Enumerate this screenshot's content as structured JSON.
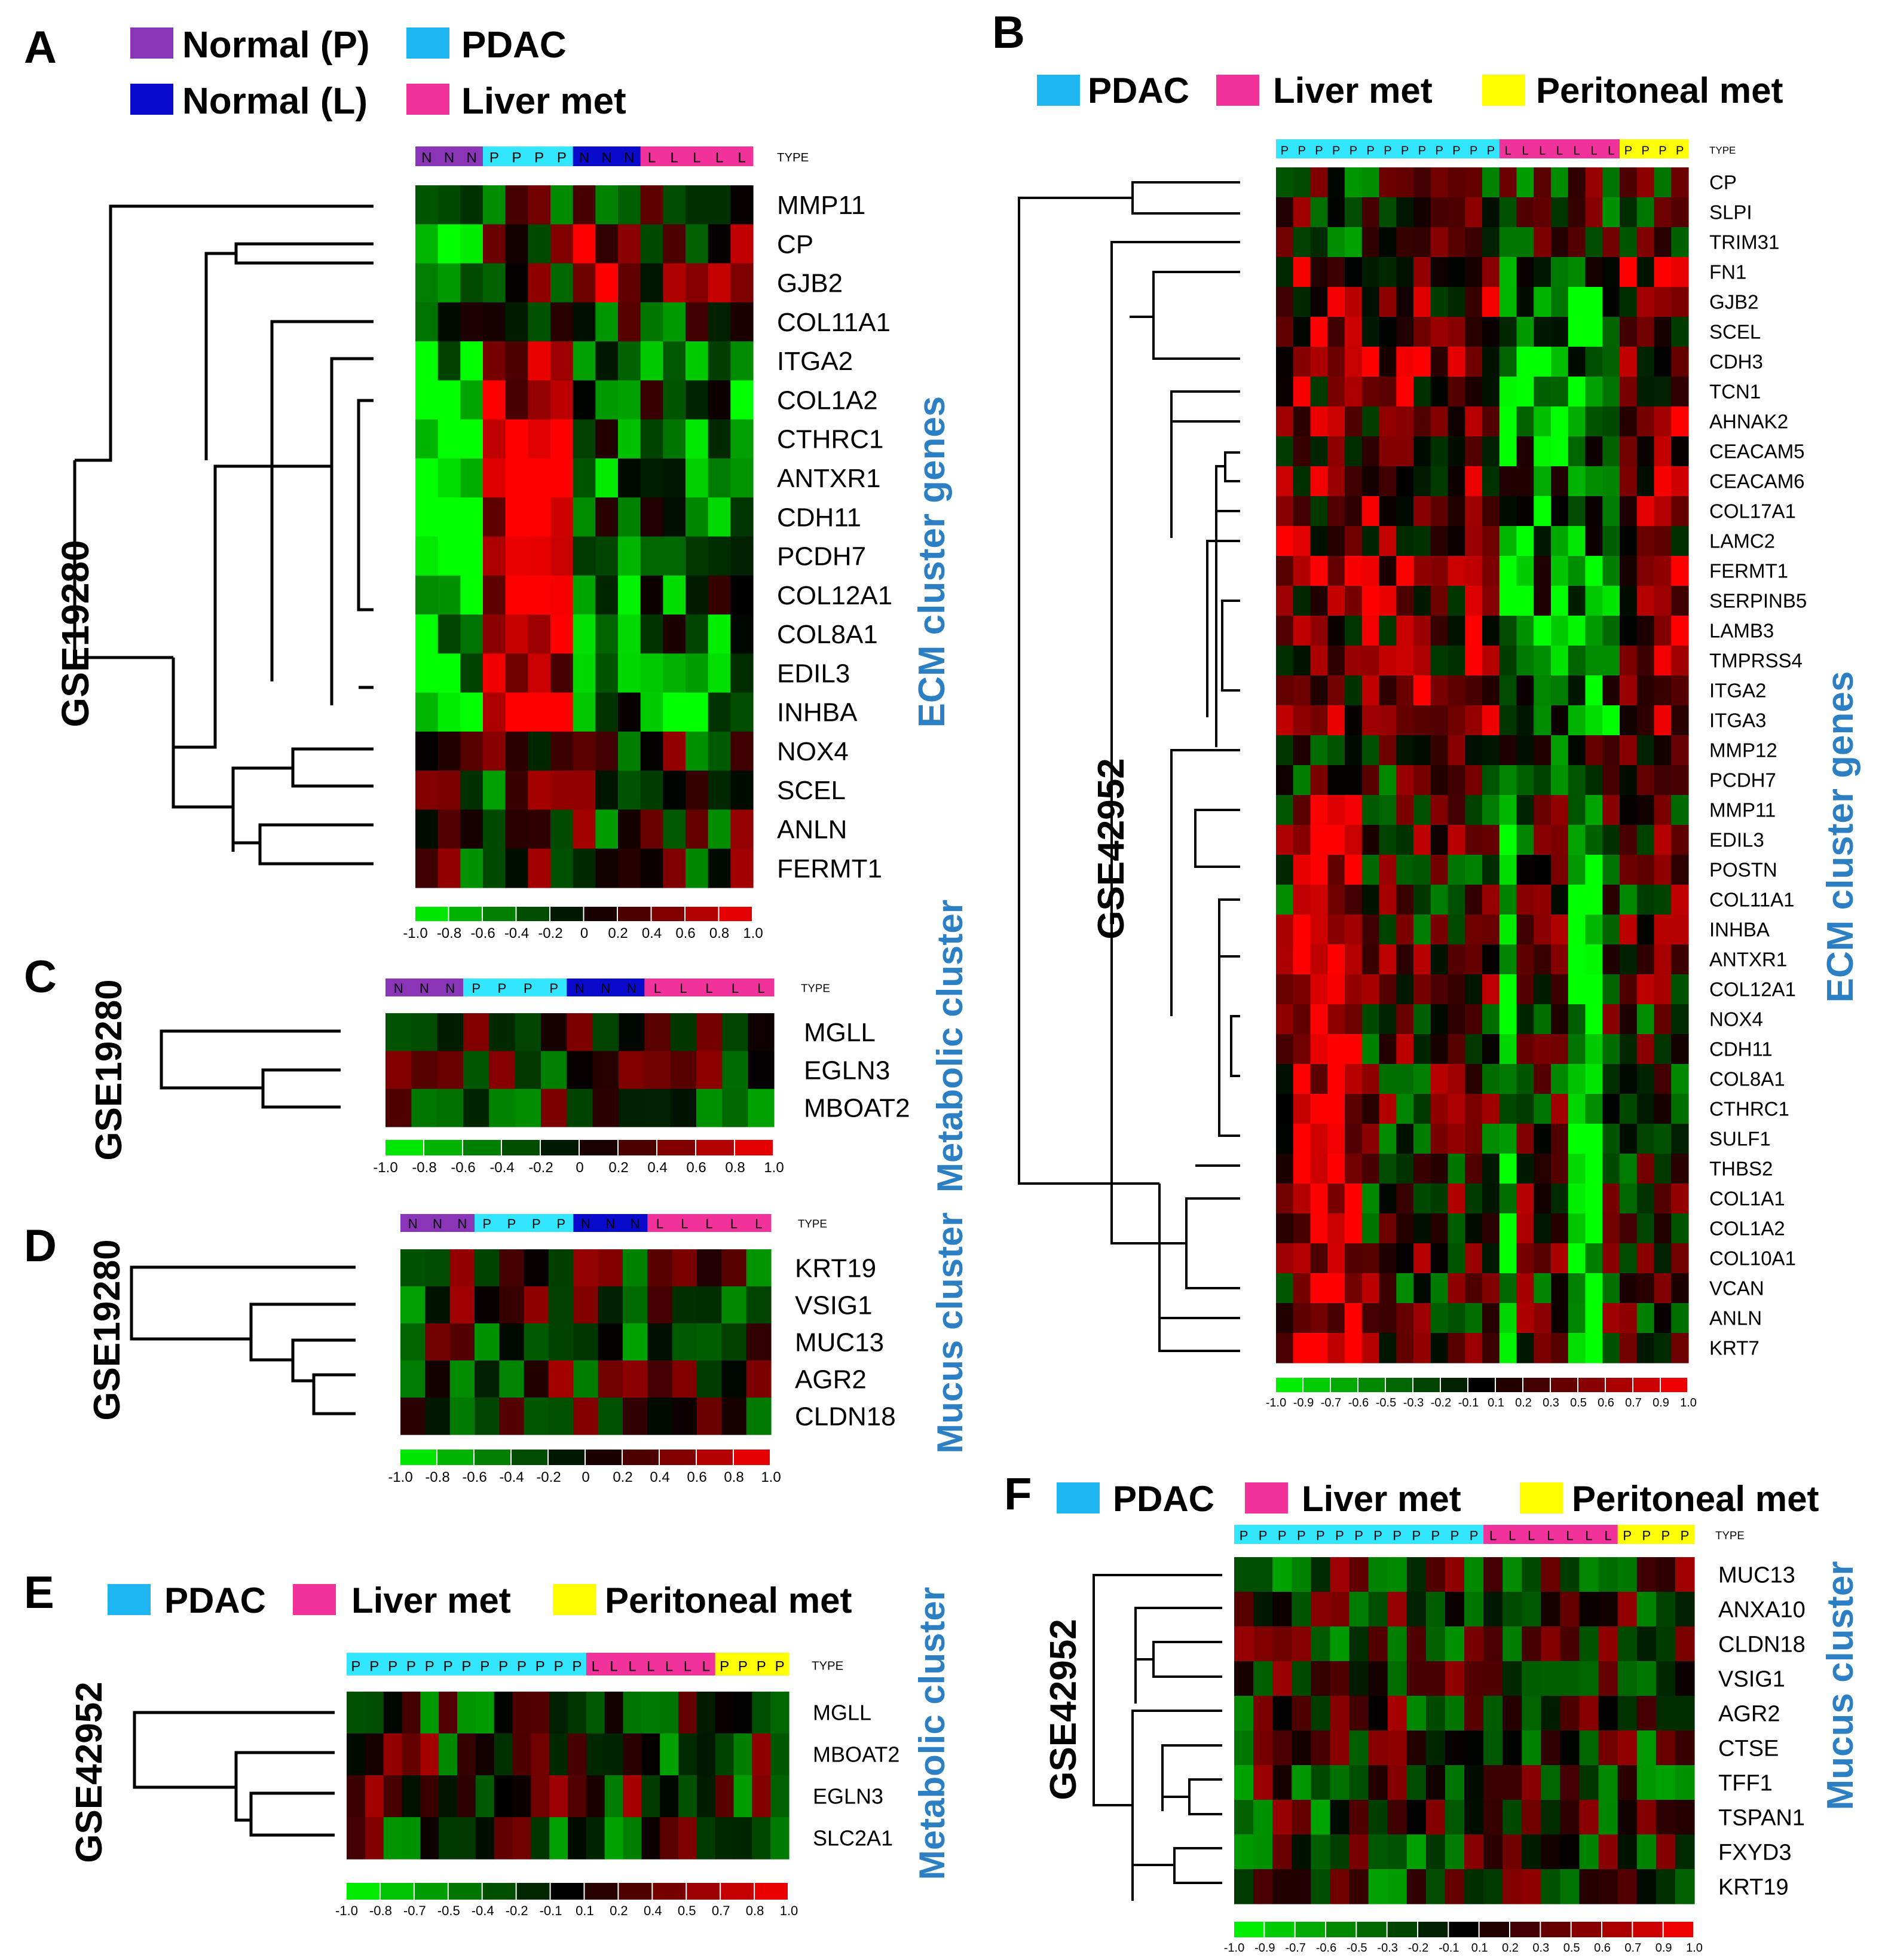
{
  "colors": {
    "normal_p": "#8a35b8",
    "normal_l": "#0a0acd",
    "pdac": "#1eb6f0",
    "liver": "#f0329a",
    "peritoneal": "#ffff00",
    "type_pdac_strip": "#33e6ff",
    "heat_green": "#00ff00",
    "heat_red": "#ff0000",
    "text_blue": "#2d7fc4"
  },
  "legends": {
    "normal_p": "Normal (P)",
    "normal_l": "Normal (L)",
    "pdac": "PDAC",
    "liver": "Liver met",
    "peritoneal": "Peritoneal met"
  },
  "type_label": "TYPE",
  "colorbar": {
    "ticks_a": [
      "-1.0",
      "-0.8",
      "-0.6",
      "-0.4",
      "-0.2",
      "0",
      "0.2",
      "0.4",
      "0.6",
      "0.8",
      "1.0"
    ],
    "ticks_b": [
      "-1.0",
      "-0.9",
      "-0.7",
      "-0.6",
      "-0.5",
      "-0.3",
      "-0.2",
      "-0.1",
      "0.1",
      "0.2",
      "0.3",
      "0.5",
      "0.6",
      "0.7",
      "0.9",
      "1.0"
    ],
    "ticks_e": [
      "-1.0",
      "-0.8",
      "-0.7",
      "-0.5",
      "-0.4",
      "-0.2",
      "-0.1",
      "0.1",
      "0.2",
      "0.4",
      "0.5",
      "0.7",
      "0.8",
      "1.0"
    ]
  },
  "chart_data": [
    {
      "type": "heatmap",
      "panel": "A",
      "dataset": "GSE19280",
      "cluster": "ECM cluster genes",
      "sample_types": [
        "N",
        "N",
        "N",
        "P",
        "P",
        "P",
        "P",
        "N",
        "N",
        "N",
        "L",
        "L",
        "L",
        "L",
        "L"
      ],
      "genes": [
        "MMP11",
        "CP",
        "GJB2",
        "COL11A1",
        "ITGA2",
        "COL1A2",
        "CTHRC1",
        "ANTXR1",
        "CDH11",
        "PCDH7",
        "COL12A1",
        "COL8A1",
        "EDIL3",
        "INHBA",
        "NOX4",
        "SCEL",
        "ANLN",
        "FERMT1"
      ],
      "color_range": [
        -1.0,
        1.0
      ]
    },
    {
      "type": "heatmap",
      "panel": "B",
      "dataset": "GSE42952",
      "cluster": "ECM cluster genes",
      "sample_types": [
        "P",
        "P",
        "P",
        "P",
        "P",
        "P",
        "P",
        "P",
        "P",
        "P",
        "P",
        "P",
        "P",
        "L",
        "L",
        "L",
        "L",
        "L",
        "L",
        "L",
        "P",
        "P",
        "P",
        "P"
      ],
      "genes": [
        "CP",
        "SLPI",
        "TRIM31",
        "FN1",
        "GJB2",
        "SCEL",
        "CDH3",
        "TCN1",
        "AHNAK2",
        "CEACAM5",
        "CEACAM6",
        "COL17A1",
        "LAMC2",
        "FERMT1",
        "SERPINB5",
        "LAMB3",
        "TMPRSS4",
        "ITGA2",
        "ITGA3",
        "MMP12",
        "PCDH7",
        "MMP11",
        "EDIL3",
        "POSTN",
        "COL11A1",
        "INHBA",
        "ANTXR1",
        "COL12A1",
        "NOX4",
        "CDH11",
        "COL8A1",
        "CTHRC1",
        "SULF1",
        "THBS2",
        "COL1A1",
        "COL1A2",
        "COL10A1",
        "VCAN",
        "ANLN",
        "KRT7"
      ],
      "color_range": [
        -1.0,
        1.0
      ]
    },
    {
      "type": "heatmap",
      "panel": "C",
      "dataset": "GSE19280",
      "cluster": "Metabolic cluster",
      "sample_types": [
        "N",
        "N",
        "N",
        "P",
        "P",
        "P",
        "P",
        "N",
        "N",
        "N",
        "L",
        "L",
        "L",
        "L",
        "L"
      ],
      "genes": [
        "MGLL",
        "EGLN3",
        "MBOAT2"
      ],
      "color_range": [
        -1.0,
        1.0
      ]
    },
    {
      "type": "heatmap",
      "panel": "D",
      "dataset": "GSE19280",
      "cluster": "Mucus cluster",
      "sample_types": [
        "N",
        "N",
        "N",
        "P",
        "P",
        "P",
        "P",
        "N",
        "N",
        "N",
        "L",
        "L",
        "L",
        "L",
        "L"
      ],
      "genes": [
        "KRT19",
        "VSIG1",
        "MUC13",
        "AGR2",
        "CLDN18"
      ],
      "color_range": [
        -1.0,
        1.0
      ]
    },
    {
      "type": "heatmap",
      "panel": "E",
      "dataset": "GSE42952",
      "cluster": "Metabolic cluster",
      "sample_types": [
        "P",
        "P",
        "P",
        "P",
        "P",
        "P",
        "P",
        "P",
        "P",
        "P",
        "P",
        "P",
        "P",
        "L",
        "L",
        "L",
        "L",
        "L",
        "L",
        "L",
        "P",
        "P",
        "P",
        "P"
      ],
      "genes": [
        "MGLL",
        "MBOAT2",
        "EGLN3",
        "SLC2A1"
      ],
      "color_range": [
        -1.0,
        1.0
      ]
    },
    {
      "type": "heatmap",
      "panel": "F",
      "dataset": "GSE42952",
      "cluster": "Mucus cluster",
      "sample_types": [
        "P",
        "P",
        "P",
        "P",
        "P",
        "P",
        "P",
        "P",
        "P",
        "P",
        "P",
        "P",
        "P",
        "L",
        "L",
        "L",
        "L",
        "L",
        "L",
        "L",
        "P",
        "P",
        "P",
        "P"
      ],
      "genes": [
        "MUC13",
        "ANXA10",
        "CLDN18",
        "VSIG1",
        "AGR2",
        "CTSE",
        "TFF1",
        "TSPAN1",
        "FXYD3",
        "KRT19"
      ],
      "color_range": [
        -1.0,
        1.0
      ]
    }
  ]
}
